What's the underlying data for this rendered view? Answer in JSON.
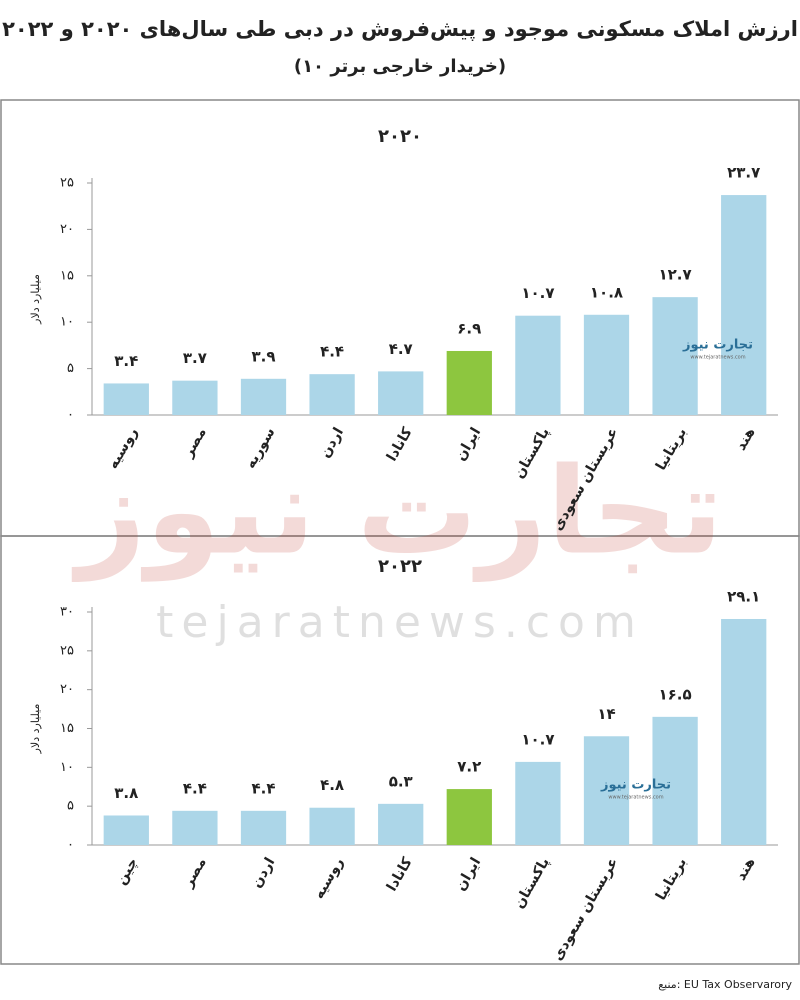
{
  "title": "ارزش املاک مسکونی موجود و پیش‌فروش در دبی طی سال‌های ۲۰۲۰ و ۲۰۲۲",
  "subtitle": "(۱۰ خریدار خارجی برتر)",
  "source": "منبع: EU Tax Observarory",
  "watermark": {
    "brand": "تجارت نیوز",
    "url": "tejaratnews.com"
  },
  "logo": {
    "name": "تجارت نیوز",
    "url": "www.tejaratnews.com"
  },
  "chart_data": [
    {
      "type": "bar",
      "title": "۲۰۲۰",
      "y_label": "میلیارد دلار",
      "grid": false,
      "categories": [
        "روسیه",
        "مصر",
        "سوریه",
        "اردن",
        "کانادا",
        "ایران",
        "پاکستان",
        "عربستان سعودی",
        "بریتانیا",
        "هند"
      ],
      "values": [
        3.4,
        3.7,
        3.9,
        4.4,
        4.7,
        6.9,
        10.7,
        10.8,
        12.7,
        23.7
      ],
      "value_labels": [
        "۳.۴",
        "۳.۷",
        "۳.۹",
        "۴.۴",
        "۴.۷",
        "۶.۹",
        "۱۰.۷",
        "۱۰.۸",
        "۱۲.۷",
        "۲۳.۷"
      ],
      "colors": [
        "#acd6e8",
        "#acd6e8",
        "#acd6e8",
        "#acd6e8",
        "#acd6e8",
        "#8dc63f",
        "#acd6e8",
        "#acd6e8",
        "#acd6e8",
        "#acd6e8"
      ],
      "ylim": [
        0,
        25
      ],
      "yticks": [
        {
          "value": 0,
          "label": "۰"
        },
        {
          "value": 5,
          "label": "۵"
        },
        {
          "value": 10,
          "label": "۱۰"
        },
        {
          "value": 15,
          "label": "۱۵"
        },
        {
          "value": 20,
          "label": "۲۰"
        },
        {
          "value": 25,
          "label": "۲۵"
        }
      ]
    },
    {
      "type": "bar",
      "title": "۲۰۲۲",
      "y_label": "میلیارد دلار",
      "grid": false,
      "categories": [
        "چین",
        "مصر",
        "اردن",
        "روسیه",
        "کانادا",
        "ایران",
        "پاکستان",
        "عربستان سعودی",
        "بریتانیا",
        "هند"
      ],
      "values": [
        3.8,
        4.4,
        4.4,
        4.8,
        5.3,
        7.2,
        10.7,
        14,
        16.5,
        29.1
      ],
      "value_labels": [
        "۳.۸",
        "۴.۴",
        "۴.۴",
        "۴.۸",
        "۵.۳",
        "۷.۲",
        "۱۰.۷",
        "۱۴",
        "۱۶.۵",
        "۲۹.۱"
      ],
      "colors": [
        "#acd6e8",
        "#acd6e8",
        "#acd6e8",
        "#acd6e8",
        "#acd6e8",
        "#8dc63f",
        "#acd6e8",
        "#acd6e8",
        "#acd6e8",
        "#acd6e8"
      ],
      "ylim": [
        0,
        30
      ],
      "yticks": [
        {
          "value": 0,
          "label": "۰"
        },
        {
          "value": 5,
          "label": "۵"
        },
        {
          "value": 10,
          "label": "۱۰"
        },
        {
          "value": 15,
          "label": "۱۵"
        },
        {
          "value": 20,
          "label": "۲۰"
        },
        {
          "value": 25,
          "label": "۲۵"
        },
        {
          "value": 30,
          "label": "۳۰"
        }
      ]
    }
  ]
}
